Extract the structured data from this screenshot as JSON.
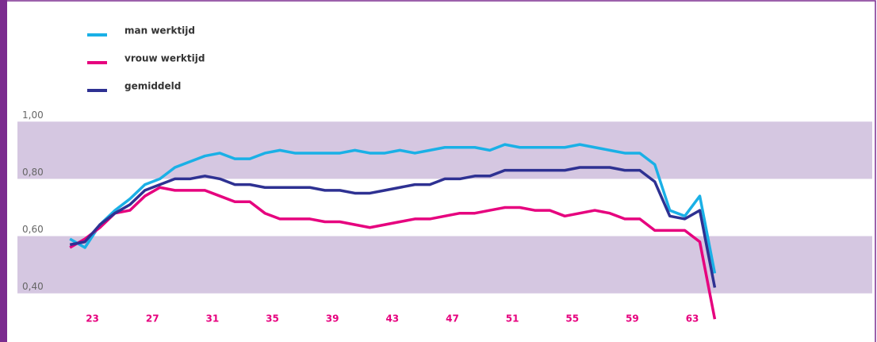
{
  "chart_data": {
    "type": "line",
    "x": [
      21.5,
      22.5,
      23.5,
      24.5,
      25.5,
      26.5,
      27.5,
      28.5,
      29.5,
      30.5,
      31.5,
      32.5,
      33.5,
      34.5,
      35.5,
      36.5,
      37.5,
      38.5,
      39.5,
      40.5,
      41.5,
      42.5,
      43.5,
      44.5,
      45.5,
      46.5,
      47.5,
      48.5,
      49.5,
      50.5,
      51.5,
      52.5,
      53.5,
      54.5,
      55.5,
      56.5,
      57.5,
      58.5,
      59.5,
      60.5,
      61.5,
      62.5,
      63.5,
      64.5
    ],
    "series": [
      {
        "name": "man werktijd",
        "color": "#1ab0e6",
        "values": [
          0.59,
          0.56,
          0.64,
          0.69,
          0.73,
          0.78,
          0.8,
          0.84,
          0.86,
          0.88,
          0.89,
          0.87,
          0.87,
          0.89,
          0.9,
          0.89,
          0.89,
          0.89,
          0.89,
          0.9,
          0.89,
          0.89,
          0.9,
          0.89,
          0.9,
          0.91,
          0.91,
          0.91,
          0.9,
          0.92,
          0.91,
          0.91,
          0.91,
          0.91,
          0.92,
          0.91,
          0.9,
          0.89,
          0.89,
          0.85,
          0.69,
          0.67,
          0.74,
          0.47
        ]
      },
      {
        "name": "vrouw werktijd",
        "color": "#e6007e",
        "values": [
          0.56,
          0.59,
          0.63,
          0.68,
          0.69,
          0.74,
          0.77,
          0.76,
          0.76,
          0.76,
          0.74,
          0.72,
          0.72,
          0.68,
          0.66,
          0.66,
          0.66,
          0.65,
          0.65,
          0.64,
          0.63,
          0.64,
          0.65,
          0.66,
          0.66,
          0.67,
          0.68,
          0.68,
          0.69,
          0.7,
          0.7,
          0.69,
          0.69,
          0.67,
          0.68,
          0.69,
          0.68,
          0.66,
          0.66,
          0.62,
          0.62,
          0.62,
          0.58,
          0.31
        ]
      },
      {
        "name": "gemiddeld",
        "color": "#2e3192",
        "values": [
          0.57,
          0.58,
          0.64,
          0.68,
          0.71,
          0.76,
          0.78,
          0.8,
          0.8,
          0.81,
          0.8,
          0.78,
          0.78,
          0.77,
          0.77,
          0.77,
          0.77,
          0.76,
          0.76,
          0.75,
          0.75,
          0.76,
          0.77,
          0.78,
          0.78,
          0.8,
          0.8,
          0.81,
          0.81,
          0.83,
          0.83,
          0.83,
          0.83,
          0.83,
          0.84,
          0.84,
          0.84,
          0.83,
          0.83,
          0.79,
          0.67,
          0.66,
          0.69,
          0.42
        ]
      }
    ],
    "xlim": [
      18,
      75
    ],
    "xticks": [
      23,
      27,
      31,
      35,
      39,
      43,
      47,
      51,
      55,
      59,
      63
    ],
    "ylim": [
      0.23,
      1.425
    ],
    "yticks": [
      {
        "value": 0.4,
        "label": "0,40"
      },
      {
        "value": 0.6,
        "label": "0,60"
      },
      {
        "value": 0.8,
        "label": "0,80"
      },
      {
        "value": 1.0,
        "label": "1,00"
      }
    ],
    "bands": true,
    "legend": "upper left"
  }
}
